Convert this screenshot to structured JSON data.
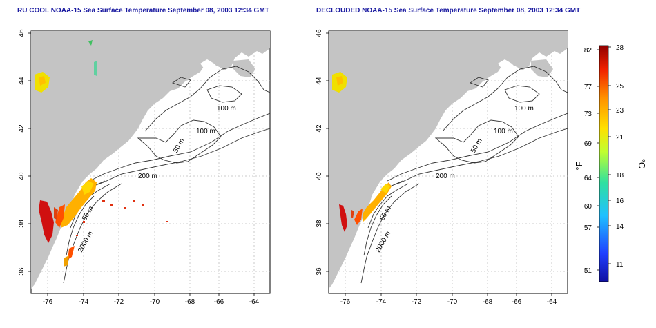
{
  "panels": [
    {
      "title": "RU COOL NOAA-15 Sea Surface Temperature September 08, 2003 12:34 GMT",
      "x_ticks": [
        "-76",
        "-74",
        "-72",
        "-70",
        "-68",
        "-66",
        "-64"
      ],
      "y_ticks": [
        "36",
        "38",
        "40",
        "42",
        "44",
        "46"
      ],
      "contour_labels": [
        "100 m",
        "100 m",
        "50 m",
        "200 m",
        "50 m",
        "2000 m"
      ]
    },
    {
      "title": "DECLOUDED NOAA-15 Sea Surface Temperature September 08, 2003 12:34 GMT",
      "x_ticks": [
        "-76",
        "-74",
        "-72",
        "-70",
        "-68",
        "-66",
        "-64"
      ],
      "y_ticks": [
        "36",
        "38",
        "40",
        "42",
        "44",
        "46"
      ],
      "contour_labels": [
        "100 m",
        "100 m",
        "50 m",
        "200 m",
        "50 m",
        "2000 m"
      ]
    }
  ],
  "colorbar": {
    "fahrenheit_unit": "°F",
    "celsius_unit": "°C",
    "fahrenheit_ticks": [
      "82",
      "77",
      "73",
      "69",
      "64",
      "60",
      "57",
      "51"
    ],
    "celsius_ticks": [
      "28",
      "25",
      "23",
      "21",
      "18",
      "16",
      "14",
      "11"
    ]
  },
  "colors": {
    "land": "#c4c4c4",
    "water": "#ffffff",
    "contour": "#333333",
    "title": "#1a1aa0",
    "warm": "#d01010",
    "hot": "#ff5000",
    "mid": "#ffb000",
    "cool": "#f0e000"
  }
}
